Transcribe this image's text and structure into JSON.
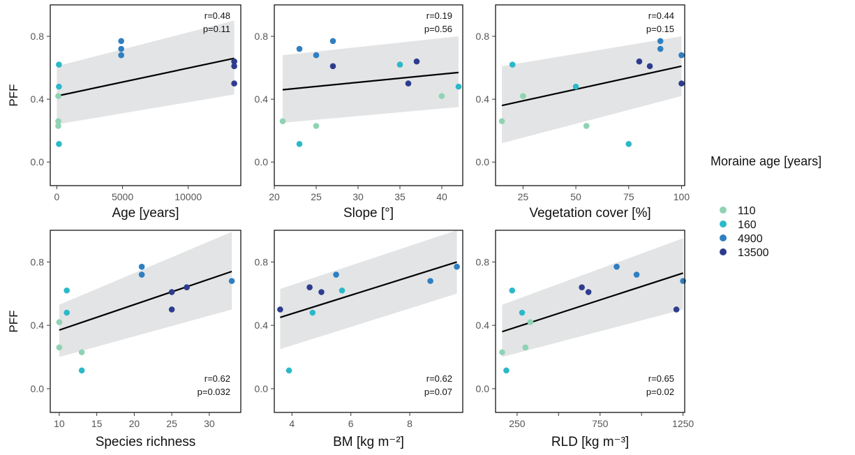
{
  "legend": {
    "title": "Moraine age [years]",
    "items": [
      {
        "label": "110",
        "color": "#8fd3b4"
      },
      {
        "label": "160",
        "color": "#2bb9c9"
      },
      {
        "label": "4900",
        "color": "#2f7fc1"
      },
      {
        "label": "13500",
        "color": "#2e3c8f"
      }
    ]
  },
  "chart_data": [
    {
      "type": "scatter",
      "ylabel": "PFF",
      "xlabel": "Age [years]",
      "xlim": [
        -500,
        14000
      ],
      "ylim": [
        -0.15,
        1.0
      ],
      "xticks": [
        {
          "v": 0,
          "label": "0"
        },
        {
          "v": 5000,
          "label": "5000"
        },
        {
          "v": 10000,
          "label": "10000"
        }
      ],
      "yticks": [
        {
          "v": 0.0,
          "label": "0.0"
        },
        {
          "v": 0.4,
          "label": "0.4"
        },
        {
          "v": 0.8,
          "label": "0.8"
        }
      ],
      "stats": [
        "r=0.48",
        "p=0.11"
      ],
      "stats_pos": "top",
      "fit": {
        "x": [
          0,
          13500
        ],
        "y": [
          0.42,
          0.66
        ],
        "band_lo": [
          0.24,
          0.43
        ],
        "band_hi": [
          0.61,
          0.9
        ]
      },
      "points": [
        {
          "x": 110,
          "y": 0.42,
          "g": 0
        },
        {
          "x": 110,
          "y": 0.26,
          "g": 0
        },
        {
          "x": 110,
          "y": 0.23,
          "g": 0
        },
        {
          "x": 160,
          "y": 0.62,
          "g": 1
        },
        {
          "x": 160,
          "y": 0.48,
          "g": 1
        },
        {
          "x": 160,
          "y": 0.115,
          "g": 1
        },
        {
          "x": 4900,
          "y": 0.77,
          "g": 2
        },
        {
          "x": 4900,
          "y": 0.72,
          "g": 2
        },
        {
          "x": 4900,
          "y": 0.68,
          "g": 2
        },
        {
          "x": 13500,
          "y": 0.64,
          "g": 3
        },
        {
          "x": 13500,
          "y": 0.61,
          "g": 3
        },
        {
          "x": 13500,
          "y": 0.5,
          "g": 3
        }
      ]
    },
    {
      "type": "scatter",
      "ylabel": "",
      "xlabel": "Slope [°]",
      "xlim": [
        20,
        42.5
      ],
      "ylim": [
        -0.15,
        1.0
      ],
      "xticks": [
        {
          "v": 20,
          "label": "20"
        },
        {
          "v": 25,
          "label": "25"
        },
        {
          "v": 30,
          "label": "30"
        },
        {
          "v": 35,
          "label": "35"
        },
        {
          "v": 40,
          "label": "40"
        }
      ],
      "yticks": [
        {
          "v": 0.0,
          "label": "0.0"
        },
        {
          "v": 0.4,
          "label": "0.4"
        },
        {
          "v": 0.8,
          "label": "0.8"
        }
      ],
      "stats": [
        "r=0.19",
        "p=0.56"
      ],
      "stats_pos": "top",
      "fit": {
        "x": [
          21,
          42
        ],
        "y": [
          0.46,
          0.57
        ],
        "band_lo": [
          0.25,
          0.35
        ],
        "band_hi": [
          0.68,
          0.8
        ]
      },
      "points": [
        {
          "x": 21,
          "y": 0.26,
          "g": 0
        },
        {
          "x": 25,
          "y": 0.23,
          "g": 0
        },
        {
          "x": 40,
          "y": 0.42,
          "g": 0
        },
        {
          "x": 23,
          "y": 0.115,
          "g": 1
        },
        {
          "x": 35,
          "y": 0.62,
          "g": 1
        },
        {
          "x": 42,
          "y": 0.48,
          "g": 1
        },
        {
          "x": 23,
          "y": 0.72,
          "g": 2
        },
        {
          "x": 25,
          "y": 0.68,
          "g": 2
        },
        {
          "x": 27,
          "y": 0.77,
          "g": 2
        },
        {
          "x": 27,
          "y": 0.61,
          "g": 3
        },
        {
          "x": 36,
          "y": 0.5,
          "g": 3
        },
        {
          "x": 37,
          "y": 0.64,
          "g": 3
        }
      ]
    },
    {
      "type": "scatter",
      "ylabel": "",
      "xlabel": "Vegetation cover [%]",
      "xlim": [
        12,
        101.5
      ],
      "ylim": [
        -0.15,
        1.0
      ],
      "xticks": [
        {
          "v": 25,
          "label": "25"
        },
        {
          "v": 50,
          "label": "50"
        },
        {
          "v": 75,
          "label": "75"
        },
        {
          "v": 100,
          "label": "100"
        }
      ],
      "yticks": [
        {
          "v": 0.0,
          "label": "0.0"
        },
        {
          "v": 0.4,
          "label": "0.4"
        },
        {
          "v": 0.8,
          "label": "0.8"
        }
      ],
      "stats": [
        "r=0.44",
        "p=0.15"
      ],
      "stats_pos": "top",
      "fit": {
        "x": [
          15,
          100
        ],
        "y": [
          0.36,
          0.61
        ],
        "band_lo": [
          0.12,
          0.42
        ],
        "band_hi": [
          0.61,
          0.8
        ]
      },
      "points": [
        {
          "x": 15,
          "y": 0.26,
          "g": 0
        },
        {
          "x": 25,
          "y": 0.42,
          "g": 0
        },
        {
          "x": 55,
          "y": 0.23,
          "g": 0
        },
        {
          "x": 20,
          "y": 0.62,
          "g": 1
        },
        {
          "x": 50,
          "y": 0.48,
          "g": 1
        },
        {
          "x": 75,
          "y": 0.115,
          "g": 1
        },
        {
          "x": 90,
          "y": 0.77,
          "g": 2
        },
        {
          "x": 90,
          "y": 0.72,
          "g": 2
        },
        {
          "x": 100,
          "y": 0.68,
          "g": 2
        },
        {
          "x": 80,
          "y": 0.64,
          "g": 3
        },
        {
          "x": 85,
          "y": 0.61,
          "g": 3
        },
        {
          "x": 100,
          "y": 0.5,
          "g": 3
        }
      ]
    },
    {
      "type": "scatter",
      "ylabel": "PFF",
      "xlabel": "Species richness",
      "xlim": [
        8.8,
        34.2
      ],
      "ylim": [
        -0.15,
        1.0
      ],
      "xticks": [
        {
          "v": 10,
          "label": "10"
        },
        {
          "v": 15,
          "label": "15"
        },
        {
          "v": 20,
          "label": "20"
        },
        {
          "v": 25,
          "label": "25"
        },
        {
          "v": 30,
          "label": "30"
        }
      ],
      "yticks": [
        {
          "v": 0.0,
          "label": "0.0"
        },
        {
          "v": 0.4,
          "label": "0.4"
        },
        {
          "v": 0.8,
          "label": "0.8"
        }
      ],
      "stats": [
        "r=0.62",
        "p=0.032"
      ],
      "stats_pos": "bottom",
      "fit": {
        "x": [
          10,
          33
        ],
        "y": [
          0.37,
          0.74
        ],
        "band_lo": [
          0.2,
          0.5
        ],
        "band_hi": [
          0.53,
          0.99
        ]
      },
      "points": [
        {
          "x": 10,
          "y": 0.42,
          "g": 0
        },
        {
          "x": 10,
          "y": 0.26,
          "g": 0
        },
        {
          "x": 13,
          "y": 0.23,
          "g": 0
        },
        {
          "x": 11,
          "y": 0.62,
          "g": 1
        },
        {
          "x": 11,
          "y": 0.48,
          "g": 1
        },
        {
          "x": 13,
          "y": 0.115,
          "g": 1
        },
        {
          "x": 21,
          "y": 0.77,
          "g": 2
        },
        {
          "x": 21,
          "y": 0.72,
          "g": 2
        },
        {
          "x": 33,
          "y": 0.68,
          "g": 2
        },
        {
          "x": 25,
          "y": 0.61,
          "g": 3
        },
        {
          "x": 25,
          "y": 0.5,
          "g": 3
        },
        {
          "x": 27,
          "y": 0.64,
          "g": 3
        }
      ]
    },
    {
      "type": "scatter",
      "ylabel": "",
      "xlabel": "BM [kg m⁻²]",
      "xlim": [
        3.4,
        9.8
      ],
      "ylim": [
        -0.15,
        1.0
      ],
      "xticks": [
        {
          "v": 4,
          "label": "4"
        },
        {
          "v": 6,
          "label": "6"
        },
        {
          "v": 8,
          "label": "8"
        }
      ],
      "yticks": [
        {
          "v": 0.0,
          "label": "0.0"
        },
        {
          "v": 0.4,
          "label": "0.4"
        },
        {
          "v": 0.8,
          "label": "0.8"
        }
      ],
      "stats": [
        "r=0.62",
        "p=0.07"
      ],
      "stats_pos": "bottom",
      "fit": {
        "x": [
          3.6,
          9.6
        ],
        "y": [
          0.45,
          0.8
        ],
        "band_lo": [
          0.25,
          0.6
        ],
        "band_hi": [
          0.63,
          1.0
        ]
      },
      "points": [
        {
          "x": 3.9,
          "y": 0.115,
          "g": 1
        },
        {
          "x": 4.7,
          "y": 0.48,
          "g": 1
        },
        {
          "x": 5.7,
          "y": 0.62,
          "g": 1
        },
        {
          "x": 5.5,
          "y": 0.72,
          "g": 2
        },
        {
          "x": 8.7,
          "y": 0.68,
          "g": 2
        },
        {
          "x": 9.6,
          "y": 0.77,
          "g": 2
        },
        {
          "x": 3.6,
          "y": 0.5,
          "g": 3
        },
        {
          "x": 4.6,
          "y": 0.64,
          "g": 3
        },
        {
          "x": 5.0,
          "y": 0.61,
          "g": 3
        }
      ]
    },
    {
      "type": "scatter",
      "ylabel": "",
      "xlabel": "RLD [kg m⁻³]",
      "xlim": [
        120,
        1260
      ],
      "ylim": [
        -0.15,
        1.0
      ],
      "xticks": [
        {
          "v": 250,
          "label": "250"
        },
        {
          "v": 500,
          "label": ""
        },
        {
          "v": 750,
          "label": "750"
        },
        {
          "v": 1000,
          "label": ""
        },
        {
          "v": 1250,
          "label": "1250"
        }
      ],
      "yticks": [
        {
          "v": 0.0,
          "label": "0.0"
        },
        {
          "v": 0.4,
          "label": "0.4"
        },
        {
          "v": 0.8,
          "label": "0.8"
        }
      ],
      "stats": [
        "r=0.65",
        "p=0.02"
      ],
      "stats_pos": "bottom",
      "fit": {
        "x": [
          160,
          1250
        ],
        "y": [
          0.36,
          0.73
        ],
        "band_lo": [
          0.2,
          0.5
        ],
        "band_hi": [
          0.53,
          0.95
        ]
      },
      "points": [
        {
          "x": 160,
          "y": 0.23,
          "g": 0
        },
        {
          "x": 300,
          "y": 0.26,
          "g": 0
        },
        {
          "x": 330,
          "y": 0.42,
          "g": 0
        },
        {
          "x": 185,
          "y": 0.115,
          "g": 1
        },
        {
          "x": 220,
          "y": 0.62,
          "g": 1
        },
        {
          "x": 280,
          "y": 0.48,
          "g": 1
        },
        {
          "x": 850,
          "y": 0.77,
          "g": 2
        },
        {
          "x": 970,
          "y": 0.72,
          "g": 2
        },
        {
          "x": 1250,
          "y": 0.68,
          "g": 2
        },
        {
          "x": 640,
          "y": 0.64,
          "g": 3
        },
        {
          "x": 680,
          "y": 0.61,
          "g": 3
        },
        {
          "x": 1210,
          "y": 0.5,
          "g": 3
        }
      ]
    }
  ]
}
